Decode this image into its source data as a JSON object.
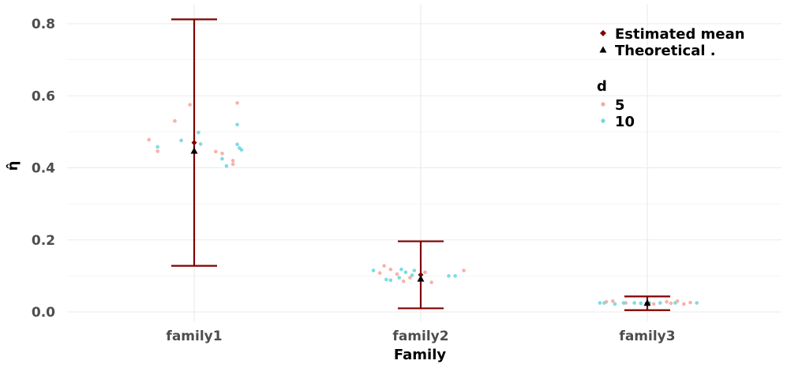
{
  "chart_data": {
    "type": "scatter",
    "xlabel": "Family",
    "ylabel": "η̂",
    "categories": [
      "family1",
      "family2",
      "family3"
    ],
    "ylim": [
      -0.02,
      0.85
    ],
    "y_ticks": [
      "0.0",
      "0.2",
      "0.4",
      "0.6",
      "0.8"
    ],
    "grid": true,
    "legend_position": "top-right",
    "legend_stat_entries": [
      {
        "label": "Estimated mean",
        "shape": "diamond",
        "color": "#7f0000"
      },
      {
        "label": "Theoretical .",
        "shape": "triangle",
        "color": "#000000"
      }
    ],
    "legend_d_title": "d",
    "series": [
      {
        "name": "5",
        "color": "#f8a8a0",
        "points": [
          {
            "cat": 0,
            "jitter": -0.21,
            "y": 0.478
          },
          {
            "cat": 0,
            "jitter": -0.17,
            "y": 0.446
          },
          {
            "cat": 0,
            "jitter": -0.09,
            "y": 0.53
          },
          {
            "cat": 0,
            "jitter": -0.02,
            "y": 0.575
          },
          {
            "cat": 0,
            "jitter": 0.1,
            "y": 0.445
          },
          {
            "cat": 0,
            "jitter": 0.13,
            "y": 0.44
          },
          {
            "cat": 0,
            "jitter": 0.18,
            "y": 0.42
          },
          {
            "cat": 0,
            "jitter": 0.18,
            "y": 0.41
          },
          {
            "cat": 0,
            "jitter": 0.2,
            "y": 0.58
          },
          {
            "cat": 1,
            "jitter": -0.19,
            "y": 0.108
          },
          {
            "cat": 1,
            "jitter": -0.17,
            "y": 0.128
          },
          {
            "cat": 1,
            "jitter": -0.14,
            "y": 0.118
          },
          {
            "cat": 1,
            "jitter": -0.11,
            "y": 0.105
          },
          {
            "cat": 1,
            "jitter": -0.08,
            "y": 0.085
          },
          {
            "cat": 1,
            "jitter": -0.05,
            "y": 0.095
          },
          {
            "cat": 1,
            "jitter": 0.02,
            "y": 0.11
          },
          {
            "cat": 1,
            "jitter": 0.05,
            "y": 0.082
          },
          {
            "cat": 1,
            "jitter": 0.2,
            "y": 0.115
          },
          {
            "cat": 2,
            "jitter": -0.19,
            "y": 0.028
          },
          {
            "cat": 2,
            "jitter": -0.16,
            "y": 0.03
          },
          {
            "cat": 2,
            "jitter": -0.1,
            "y": 0.025
          },
          {
            "cat": 2,
            "jitter": 0.03,
            "y": 0.022
          },
          {
            "cat": 2,
            "jitter": 0.09,
            "y": 0.028
          },
          {
            "cat": 2,
            "jitter": 0.11,
            "y": 0.024
          },
          {
            "cat": 2,
            "jitter": 0.14,
            "y": 0.03
          },
          {
            "cat": 2,
            "jitter": 0.17,
            "y": 0.022
          },
          {
            "cat": 2,
            "jitter": 0.2,
            "y": 0.026
          }
        ]
      },
      {
        "name": "10",
        "color": "#6ed8df",
        "points": [
          {
            "cat": 0,
            "jitter": -0.17,
            "y": 0.458
          },
          {
            "cat": 0,
            "jitter": -0.06,
            "y": 0.476
          },
          {
            "cat": 0,
            "jitter": 0.02,
            "y": 0.498
          },
          {
            "cat": 0,
            "jitter": 0.03,
            "y": 0.466
          },
          {
            "cat": 0,
            "jitter": 0.13,
            "y": 0.425
          },
          {
            "cat": 0,
            "jitter": 0.15,
            "y": 0.405
          },
          {
            "cat": 0,
            "jitter": 0.2,
            "y": 0.52
          },
          {
            "cat": 0,
            "jitter": 0.2,
            "y": 0.465
          },
          {
            "cat": 0,
            "jitter": 0.21,
            "y": 0.455
          },
          {
            "cat": 0,
            "jitter": 0.22,
            "y": 0.45
          },
          {
            "cat": 1,
            "jitter": -0.22,
            "y": 0.115
          },
          {
            "cat": 1,
            "jitter": -0.16,
            "y": 0.09
          },
          {
            "cat": 1,
            "jitter": -0.14,
            "y": 0.088
          },
          {
            "cat": 1,
            "jitter": -0.1,
            "y": 0.095
          },
          {
            "cat": 1,
            "jitter": -0.09,
            "y": 0.118
          },
          {
            "cat": 1,
            "jitter": -0.07,
            "y": 0.11
          },
          {
            "cat": 1,
            "jitter": -0.04,
            "y": 0.102
          },
          {
            "cat": 1,
            "jitter": -0.03,
            "y": 0.115
          },
          {
            "cat": 1,
            "jitter": 0.13,
            "y": 0.1
          },
          {
            "cat": 1,
            "jitter": 0.16,
            "y": 0.1
          },
          {
            "cat": 2,
            "jitter": -0.22,
            "y": 0.025
          },
          {
            "cat": 2,
            "jitter": -0.2,
            "y": 0.025
          },
          {
            "cat": 2,
            "jitter": -0.15,
            "y": 0.022
          },
          {
            "cat": 2,
            "jitter": -0.11,
            "y": 0.025
          },
          {
            "cat": 2,
            "jitter": -0.06,
            "y": 0.025
          },
          {
            "cat": 2,
            "jitter": -0.03,
            "y": 0.024
          },
          {
            "cat": 2,
            "jitter": 0.01,
            "y": 0.025
          },
          {
            "cat": 2,
            "jitter": 0.06,
            "y": 0.025
          },
          {
            "cat": 2,
            "jitter": 0.13,
            "y": 0.025
          },
          {
            "cat": 2,
            "jitter": 0.23,
            "y": 0.025
          }
        ]
      }
    ],
    "error_bars": [
      {
        "cat": 0,
        "low": 0.128,
        "high": 0.812,
        "mean": 0.47
      },
      {
        "cat": 1,
        "low": 0.01,
        "high": 0.196,
        "mean": 0.103
      },
      {
        "cat": 2,
        "low": 0.005,
        "high": 0.043,
        "mean": 0.024
      }
    ],
    "theoretical": [
      {
        "cat": 0,
        "y": 0.447
      },
      {
        "cat": 1,
        "y": 0.092
      },
      {
        "cat": 2,
        "y": 0.025
      }
    ],
    "colors": {
      "errorbar": "#7f0000",
      "theoretical": "#000000",
      "grid": "#ebebeb"
    }
  }
}
